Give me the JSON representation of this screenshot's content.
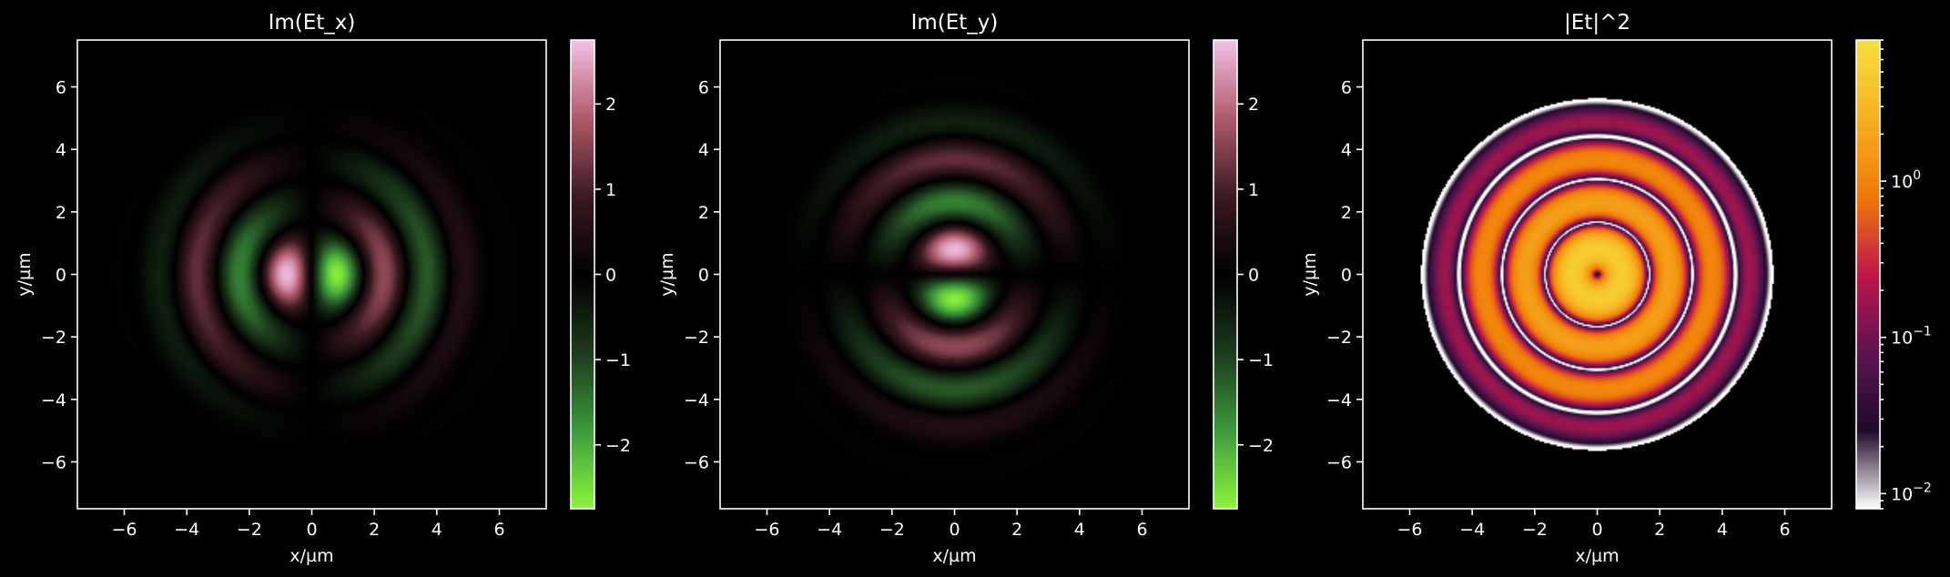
{
  "chart_data": [
    {
      "type": "heatmap",
      "title": "Im(Et_x)",
      "xlabel": "x/µm",
      "ylabel": "y/µm",
      "xlim": [
        -7.5,
        7.5
      ],
      "ylim": [
        -7.5,
        7.5
      ],
      "xticks": [
        -6,
        -4,
        -2,
        0,
        2,
        4,
        6
      ],
      "yticks": [
        -6,
        -4,
        -2,
        0,
        2,
        4,
        6
      ],
      "xtick_labels": [
        "−6",
        "−4",
        "−2",
        "0",
        "2",
        "4",
        "6"
      ],
      "ytick_labels": [
        "−6",
        "−4",
        "−2",
        "0",
        "2",
        "4",
        "6"
      ],
      "field": "imag_x",
      "colormap": "diverging green-black-pink",
      "colorbar": {
        "scale": "linear",
        "range": [
          -2.75,
          2.75
        ],
        "ticks": [
          -2,
          -1,
          0,
          1,
          2
        ],
        "tick_labels": [
          "−2",
          "−1",
          "0",
          "1",
          "2"
        ],
        "colors": [
          "#8cf53a",
          "#3c9a3c",
          "#000000",
          "#b05a6a",
          "#f2c2e6"
        ]
      },
      "grid": false
    },
    {
      "type": "heatmap",
      "title": "Im(Et_y)",
      "xlabel": "x/µm",
      "ylabel": "y/µm",
      "xlim": [
        -7.5,
        7.5
      ],
      "ylim": [
        -7.5,
        7.5
      ],
      "xticks": [
        -6,
        -4,
        -2,
        0,
        2,
        4,
        6
      ],
      "yticks": [
        -6,
        -4,
        -2,
        0,
        2,
        4,
        6
      ],
      "xtick_labels": [
        "−6",
        "−4",
        "−2",
        "0",
        "2",
        "4",
        "6"
      ],
      "ytick_labels": [
        "−6",
        "−4",
        "−2",
        "0",
        "2",
        "4",
        "6"
      ],
      "field": "imag_y",
      "colormap": "diverging green-black-pink",
      "colorbar": {
        "scale": "linear",
        "range": [
          -2.75,
          2.75
        ],
        "ticks": [
          -2,
          -1,
          0,
          1,
          2
        ],
        "tick_labels": [
          "−2",
          "−1",
          "0",
          "1",
          "2"
        ],
        "colors": [
          "#8cf53a",
          "#3c9a3c",
          "#000000",
          "#b05a6a",
          "#f2c2e6"
        ]
      },
      "grid": false
    },
    {
      "type": "heatmap",
      "title": "|Et|^2",
      "xlabel": "x/µm",
      "ylabel": "y/µm",
      "xlim": [
        -7.5,
        7.5
      ],
      "ylim": [
        -7.5,
        7.5
      ],
      "xticks": [
        -6,
        -4,
        -2,
        0,
        2,
        4,
        6
      ],
      "yticks": [
        -6,
        -4,
        -2,
        0,
        2,
        4,
        6
      ],
      "xtick_labels": [
        "−6",
        "−4",
        "−2",
        "0",
        "2",
        "4",
        "6"
      ],
      "ytick_labels": [
        "−6",
        "−4",
        "−2",
        "0",
        "2",
        "4",
        "6"
      ],
      "field": "intensity",
      "colormap": "inferno-like",
      "colorbar": {
        "scale": "log",
        "range": [
          0.008,
          8
        ],
        "ticks": [
          0.01,
          0.1,
          1
        ],
        "tick_labels": [
          "10",
          "10",
          "10"
        ],
        "tick_exponents": [
          "−2",
          "−1",
          "0"
        ],
        "colors": [
          "#ffffff",
          "#1e0a28",
          "#c0164a",
          "#f07a08",
          "#f6d33c"
        ]
      },
      "grid": false
    }
  ]
}
